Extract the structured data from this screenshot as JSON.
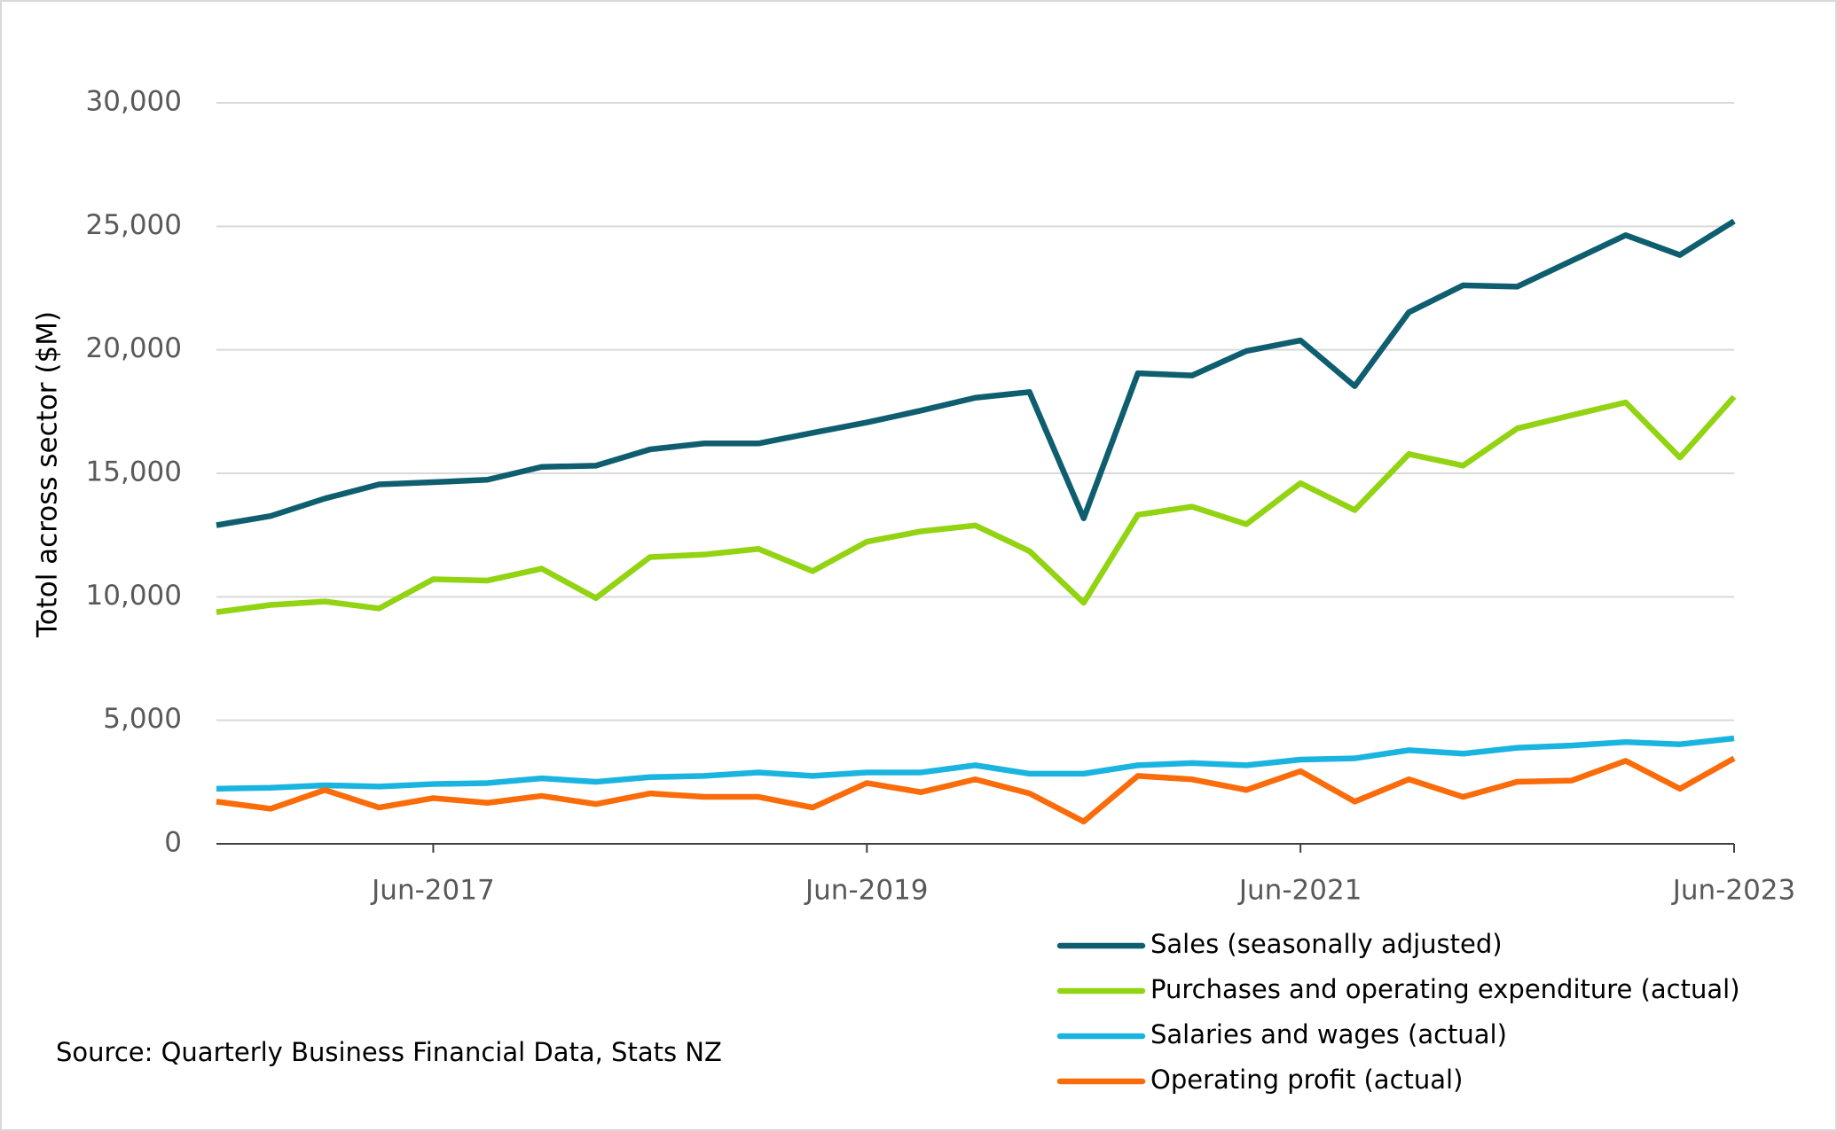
{
  "chart_data": {
    "type": "line",
    "y_label": "Totol across sector ($M)",
    "source": "Source: Quarterly Business Financial Data, Stats NZ",
    "categories": [
      null,
      null,
      null,
      null,
      "Jun-2017",
      null,
      null,
      null,
      null,
      null,
      null,
      null,
      "Jun-2019",
      null,
      null,
      null,
      null,
      null,
      null,
      null,
      "Jun-2021",
      null,
      null,
      null,
      null,
      null,
      null,
      null,
      "Jun-2023"
    ],
    "series": [
      {
        "name": "Sales (seasonally adjusted)",
        "color": "#0e5e6f",
        "values": [
          12900,
          13270,
          13980,
          14550,
          14640,
          14740,
          15260,
          15310,
          15970,
          16210,
          16210,
          16640,
          17060,
          17540,
          18060,
          18290,
          13180,
          19050,
          18960,
          19950,
          20380,
          18530,
          21520,
          22610,
          22560,
          23600,
          24640,
          23840,
          25210
        ]
      },
      {
        "name": "Purchases and operating expenditure (actual)",
        "color": "#92d312",
        "values": [
          9380,
          9670,
          9810,
          9530,
          10710,
          10660,
          11140,
          9950,
          11610,
          11710,
          11940,
          11040,
          12230,
          12650,
          12890,
          11850,
          9760,
          13320,
          13650,
          12940,
          14600,
          13510,
          15780,
          15310,
          16820,
          17350,
          17870,
          15640,
          18100
        ]
      },
      {
        "name": "Salaries and wages (actual)",
        "color": "#1ab4e0",
        "values": [
          2230,
          2270,
          2370,
          2320,
          2420,
          2460,
          2650,
          2510,
          2700,
          2750,
          2890,
          2750,
          2890,
          2890,
          3180,
          2840,
          2840,
          3180,
          3270,
          3180,
          3410,
          3460,
          3790,
          3650,
          3890,
          3980,
          4120,
          4030,
          4270
        ]
      },
      {
        "name": "Operating profit (actual)",
        "color": "#fa6b0a",
        "values": [
          1710,
          1420,
          2180,
          1470,
          1850,
          1660,
          1940,
          1610,
          2040,
          1900,
          1900,
          1470,
          2460,
          2090,
          2610,
          2040,
          900,
          2750,
          2610,
          2180,
          2940,
          1710,
          2610,
          1900,
          2510,
          2560,
          3360,
          2230,
          3460
        ]
      }
    ],
    "ylim": [
      0,
      30000
    ],
    "yticks": [
      0,
      {
        "value": 5000,
        "label": "5,000"
      },
      {
        "value": 10000,
        "label": "10,000"
      },
      {
        "value": 15000,
        "label": "15,000"
      },
      {
        "value": 20000,
        "label": "20,000"
      },
      {
        "value": 25000,
        "label": "25,000"
      },
      {
        "value": 30000,
        "label": "30,000"
      }
    ],
    "grid": true,
    "legend": "bottom-right"
  }
}
